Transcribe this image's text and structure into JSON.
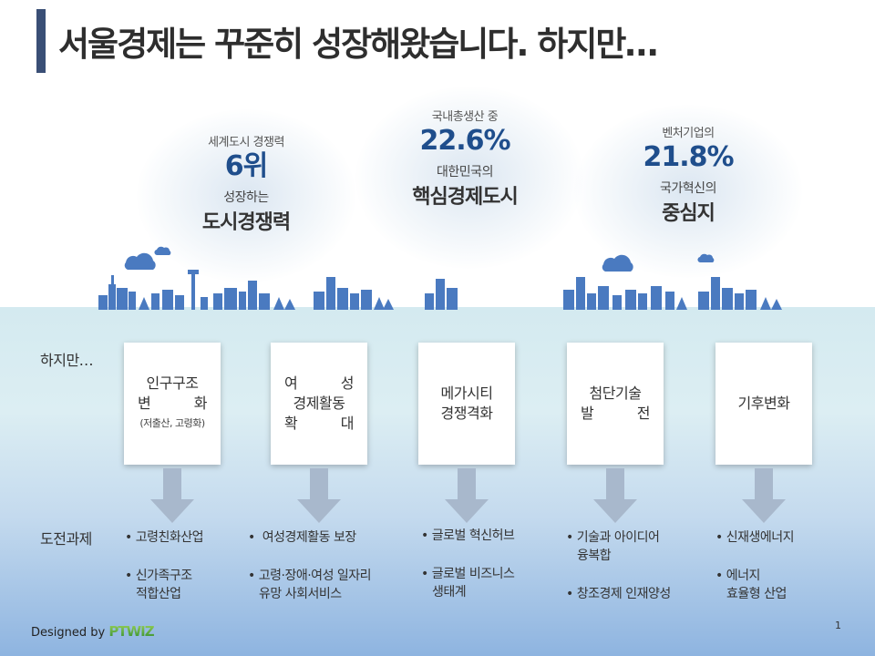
{
  "title": "서울경제는 꾸준히 성장해왔습니다. 하지만…",
  "stats": [
    {
      "small": "세계도시 경쟁력",
      "big": "6위",
      "mid": "성장하는",
      "strong": "도시경쟁력"
    },
    {
      "small": "국내총생산 중",
      "big": "22.6%",
      "mid": "대한민국의",
      "strong": "핵심경제도시"
    },
    {
      "small": "벤처기업의",
      "big": "21.8%",
      "mid": "국가혁신의",
      "strong": "중심지"
    }
  ],
  "row_labels": {
    "however": "하지만…",
    "challenges": "도전과제"
  },
  "cards": [
    {
      "line1": "인구구조",
      "line2": "변 화",
      "sub": "(저출산, 고령화)"
    },
    {
      "line1": "여 성",
      "line2": "경제활동",
      "line3": "확 대"
    },
    {
      "line1": "메가시티",
      "line2": "경쟁격화"
    },
    {
      "line1": "첨단기술",
      "line2": "발 전"
    },
    {
      "line1": "기후변화"
    }
  ],
  "challenges": [
    [
      {
        "text": "고령친화산업"
      },
      {
        "text": "신가족구조",
        "cont": "적합산업"
      }
    ],
    [
      {
        "text": " 여성경제활동 보장"
      },
      {
        "text": "고령·장애·여성 일자리",
        "cont": "유망 사회서비스"
      }
    ],
    [
      {
        "text": "글로벌 혁신허브"
      },
      {
        "text": "글로벌 비즈니스",
        "cont": "생태계"
      }
    ],
    [
      {
        "text": "기술과 아이디어",
        "cont": "융복합"
      },
      {
        "text": "창조경제 인재양성"
      }
    ],
    [
      {
        "text": "신재생에너지"
      },
      {
        "text": "에너지",
        "cont": "효율형 산업"
      }
    ]
  ],
  "bullet_char": "•",
  "footer": {
    "designed_by": "Designed by",
    "logo": "PTWIZ"
  },
  "page_number": "1",
  "colors": {
    "accent": "#1f4e8c",
    "title_bar": "#3a4f76",
    "building": "#4a7ac0",
    "arrow": "#a8b8cc"
  }
}
